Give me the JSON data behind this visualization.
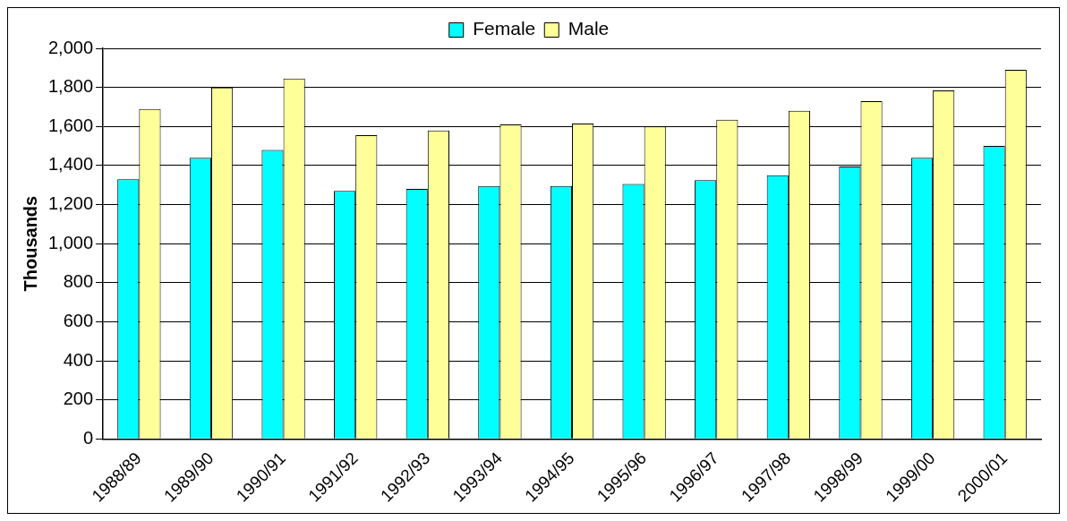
{
  "chart_data": {
    "type": "bar",
    "ylabel": "Thousands",
    "categories": [
      "1988/89",
      "1989/90",
      "1990/91",
      "1991/92",
      "1992/93",
      "1993/94",
      "1994/95",
      "1995/96",
      "1996/97",
      "1997/98",
      "1998/99",
      "1999/00",
      "2000/01"
    ],
    "series": [
      {
        "name": "Female",
        "color": "#00ffff",
        "values": [
          1330,
          1440,
          1480,
          1270,
          1280,
          1295,
          1295,
          1305,
          1325,
          1350,
          1395,
          1440,
          1500
        ]
      },
      {
        "name": "Male",
        "color": "#ffff99",
        "values": [
          1690,
          1800,
          1845,
          1555,
          1580,
          1610,
          1615,
          1600,
          1635,
          1680,
          1730,
          1785,
          1890
        ]
      }
    ],
    "ylim": [
      0,
      2000
    ],
    "yticks": [
      0,
      200,
      400,
      600,
      800,
      {
        "value": 1000,
        "label": "1,000"
      },
      {
        "value": 1200,
        "label": "1,200"
      },
      {
        "value": 1400,
        "label": "1,400"
      },
      {
        "value": 1600,
        "label": "1,600"
      },
      {
        "value": 1800,
        "label": "1,800"
      },
      {
        "value": 2000,
        "label": "2,000"
      }
    ],
    "grid": "y",
    "legend": "top"
  }
}
